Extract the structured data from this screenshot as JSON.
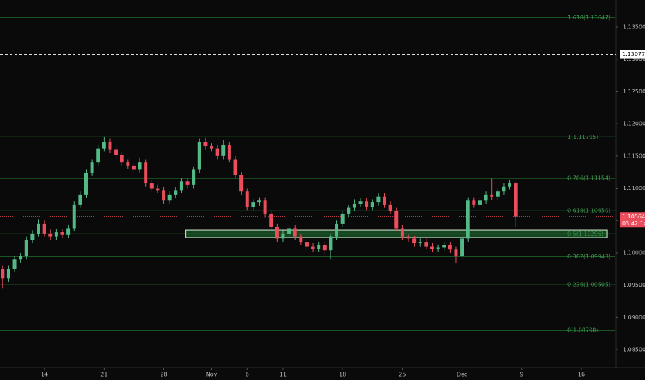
{
  "chart_data": {
    "type": "candlestick",
    "up_color": "#53b987",
    "down_color": "#eb4d5c",
    "xlim": [
      -3.72,
      47.9
    ],
    "ylim": [
      1.08222,
      1.13918
    ],
    "xticks": [
      {
        "value": 0,
        "label": "14"
      },
      {
        "value": 5,
        "label": "21"
      },
      {
        "value": 10,
        "label": "28"
      },
      {
        "value": 14,
        "label": "Nov"
      },
      {
        "value": 17,
        "label": "6"
      },
      {
        "value": 20,
        "label": "11"
      },
      {
        "value": 25,
        "label": "18"
      },
      {
        "value": 30,
        "label": "25"
      },
      {
        "value": 35,
        "label": "Dec"
      },
      {
        "value": 40,
        "label": "9"
      },
      {
        "value": 45,
        "label": "16"
      }
    ],
    "yticks": [
      {
        "value": 1.085,
        "label": "1.08500"
      },
      {
        "value": 1.09,
        "label": "1.09000"
      },
      {
        "value": 1.095,
        "label": "1.09500"
      },
      {
        "value": 1.1,
        "label": "1.10000"
      },
      {
        "value": 1.105,
        "label": "1.10500"
      },
      {
        "value": 1.11,
        "label": "1.11000"
      },
      {
        "value": 1.115,
        "label": "1.11500"
      },
      {
        "value": 1.12,
        "label": "1.12000"
      },
      {
        "value": 1.125,
        "label": "1.12500"
      },
      {
        "value": 1.13,
        "label": "1.13000"
      },
      {
        "value": 1.135,
        "label": "1.13500"
      }
    ],
    "x": [
      -3.5,
      -3,
      -2.5,
      -2,
      -1.5,
      -1,
      -0.5,
      0,
      0.5,
      1,
      1.5,
      2,
      2.5,
      3,
      3.5,
      4,
      4.5,
      5,
      5.5,
      6,
      6.5,
      7,
      7.5,
      8,
      8.5,
      9,
      9.5,
      10,
      10.5,
      11,
      11.5,
      12,
      12.5,
      13,
      13.5,
      14,
      14.5,
      15,
      15.5,
      16,
      16.5,
      17,
      17.5,
      18,
      18.5,
      19,
      19.5,
      20,
      20.5,
      21,
      21.5,
      22,
      22.5,
      23,
      23.5,
      24,
      24.5,
      25,
      25.5,
      26,
      26.5,
      27,
      27.5,
      28,
      28.5,
      29,
      29.5,
      30,
      30.5,
      31,
      31.5,
      32,
      32.5,
      33,
      33.5,
      34,
      34.5,
      35,
      35.5,
      36,
      36.5,
      37,
      37.5,
      38,
      38.5,
      39,
      39.5
    ],
    "open": [
      1.0975,
      1.096,
      1.0975,
      1.099,
      1.0995,
      1.102,
      1.103,
      1.1045,
      1.103,
      1.1025,
      1.1032,
      1.1028,
      1.1038,
      1.1075,
      1.109,
      1.1124,
      1.114,
      1.1162,
      1.1172,
      1.116,
      1.1151,
      1.114,
      1.1135,
      1.1129,
      1.114,
      1.1108,
      1.11,
      1.1097,
      1.1081,
      1.109,
      1.1097,
      1.1111,
      1.1105,
      1.1129,
      1.1172,
      1.1165,
      1.1162,
      1.115,
      1.1167,
      1.1145,
      1.112,
      1.1095,
      1.1071,
      1.1078,
      1.1081,
      1.106,
      1.104,
      1.1022,
      1.103,
      1.1038,
      1.1025,
      1.1017,
      1.101,
      1.1006,
      1.1012,
      1.1004,
      1.1025,
      1.1045,
      1.106,
      1.107,
      1.1076,
      1.108,
      1.1071,
      1.1078,
      1.1087,
      1.1075,
      1.1065,
      1.1038,
      1.1025,
      1.1022,
      1.1015,
      1.1017,
      1.101,
      1.1006,
      1.1008,
      1.1012,
      1.1005,
      1.0995,
      1.1022,
      1.1081,
      1.1075,
      1.1081,
      1.109,
      1.1087,
      1.1095,
      1.1103,
      1.1108
    ],
    "high": [
      1.098,
      1.098,
      1.0995,
      1.1,
      1.1025,
      1.1035,
      1.1052,
      1.105,
      1.1036,
      1.1037,
      1.1037,
      1.1043,
      1.108,
      1.1095,
      1.1129,
      1.1145,
      1.1167,
      1.118,
      1.1177,
      1.1165,
      1.1156,
      1.1145,
      1.114,
      1.1148,
      1.1145,
      1.1113,
      1.1105,
      1.1102,
      1.1095,
      1.1102,
      1.1116,
      1.1116,
      1.1134,
      1.1177,
      1.1178,
      1.117,
      1.1167,
      1.1175,
      1.1172,
      1.115,
      1.1125,
      1.11,
      1.1083,
      1.1086,
      1.1086,
      1.1065,
      1.1045,
      1.1035,
      1.1043,
      1.1043,
      1.103,
      1.1022,
      1.1015,
      1.1017,
      1.1017,
      1.103,
      1.105,
      1.1065,
      1.1075,
      1.1083,
      1.1085,
      1.1085,
      1.1083,
      1.1093,
      1.1092,
      1.108,
      1.107,
      1.1043,
      1.103,
      1.1027,
      1.1022,
      1.1022,
      1.1015,
      1.1013,
      1.1017,
      1.1017,
      1.101,
      1.1027,
      1.1086,
      1.1086,
      1.1086,
      1.1095,
      1.1115,
      1.11,
      1.1108,
      1.1113,
      1.111
    ],
    "low": [
      1.0945,
      1.0955,
      1.097,
      1.0985,
      1.099,
      1.1015,
      1.1025,
      1.1025,
      1.102,
      1.102,
      1.1023,
      1.1023,
      1.1033,
      1.107,
      1.1085,
      1.1119,
      1.1135,
      1.1157,
      1.1155,
      1.1146,
      1.1135,
      1.113,
      1.1124,
      1.1124,
      1.1103,
      1.1095,
      1.1092,
      1.1076,
      1.1076,
      1.1085,
      1.1092,
      1.11,
      1.11,
      1.1124,
      1.116,
      1.1157,
      1.1145,
      1.1145,
      1.114,
      1.1115,
      1.109,
      1.1066,
      1.1066,
      1.1073,
      1.1055,
      1.1035,
      1.1017,
      1.1017,
      1.1025,
      1.102,
      1.1012,
      1.1005,
      1.1001,
      1.1001,
      1.0999,
      1.099,
      1.102,
      1.104,
      1.1055,
      1.1065,
      1.1071,
      1.1066,
      1.1066,
      1.1073,
      1.107,
      1.106,
      1.1033,
      1.102,
      1.1017,
      1.101,
      1.101,
      1.1005,
      1.1001,
      1.1001,
      1.1003,
      1.1,
      1.0985,
      1.099,
      1.1017,
      1.107,
      1.107,
      1.1076,
      1.1082,
      1.1082,
      1.109,
      1.1098,
      1.104
    ],
    "close": [
      1.096,
      1.0975,
      1.099,
      1.0995,
      1.102,
      1.103,
      1.1045,
      1.103,
      1.1025,
      1.1032,
      1.1028,
      1.1038,
      1.1075,
      1.109,
      1.1124,
      1.114,
      1.1162,
      1.1172,
      1.116,
      1.1151,
      1.114,
      1.1135,
      1.1129,
      1.114,
      1.1108,
      1.11,
      1.1097,
      1.1081,
      1.109,
      1.1097,
      1.1111,
      1.1105,
      1.1129,
      1.1172,
      1.1165,
      1.1162,
      1.115,
      1.1167,
      1.1145,
      1.112,
      1.1095,
      1.1071,
      1.1078,
      1.1081,
      1.106,
      1.104,
      1.1022,
      1.103,
      1.1038,
      1.1025,
      1.1017,
      1.101,
      1.1006,
      1.1012,
      1.1004,
      1.1025,
      1.1045,
      1.106,
      1.107,
      1.1076,
      1.108,
      1.1071,
      1.1078,
      1.1087,
      1.1075,
      1.1065,
      1.1038,
      1.1025,
      1.1022,
      1.1015,
      1.1017,
      1.101,
      1.1006,
      1.1008,
      1.1012,
      1.1005,
      1.0995,
      1.1022,
      1.1081,
      1.1075,
      1.1081,
      1.109,
      1.1087,
      1.1095,
      1.1103,
      1.1108,
      1.1056
    ],
    "fib_color": "#1f6e2c",
    "fib": [
      {
        "value": 1.13647,
        "label": "1.618(1.13647)"
      },
      {
        "value": 1.11795,
        "label": "1(1.11795)"
      },
      {
        "value": 1.11154,
        "label": "0.786(1.11154)"
      },
      {
        "value": 1.1065,
        "label": "0.618(1.10650)"
      },
      {
        "value": 1.10296,
        "label": "0.5(1.10296)"
      },
      {
        "value": 1.09943,
        "label": "0.382(1.09943)"
      },
      {
        "value": 1.09505,
        "label": "0.236(1.09505)"
      },
      {
        "value": 1.08798,
        "label": "0(1.08798)"
      }
    ],
    "zone": {
      "x": [
        11.86,
        47.15
      ],
      "y": [
        1.10235,
        1.10352
      ]
    },
    "alert_price": 1.13077,
    "last_price": 1.10564,
    "countdown": "03:42:14"
  }
}
